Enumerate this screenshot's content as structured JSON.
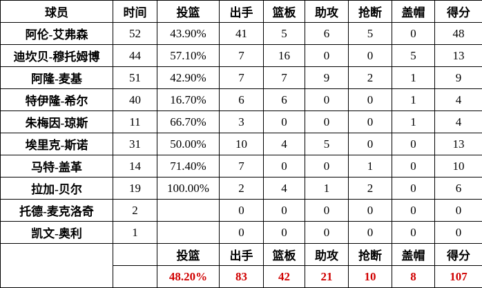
{
  "header": [
    "球员",
    "时间",
    "投篮",
    "出手",
    "篮板",
    "助攻",
    "抢断",
    "盖帽",
    "得分"
  ],
  "rows": [
    [
      "阿伦-艾弗森",
      "52",
      "43.90%",
      "41",
      "5",
      "6",
      "5",
      "0",
      "48"
    ],
    [
      "迪坎贝-穆托姆博",
      "44",
      "57.10%",
      "7",
      "16",
      "0",
      "0",
      "5",
      "13"
    ],
    [
      "阿隆-麦基",
      "51",
      "42.90%",
      "7",
      "7",
      "9",
      "2",
      "1",
      "9"
    ],
    [
      "特伊隆-希尔",
      "40",
      "16.70%",
      "6",
      "6",
      "0",
      "0",
      "1",
      "4"
    ],
    [
      "朱梅因-琼斯",
      "11",
      "66.70%",
      "3",
      "0",
      "0",
      "0",
      "1",
      "4"
    ],
    [
      "埃里克-斯诺",
      "31",
      "50.00%",
      "10",
      "4",
      "5",
      "0",
      "0",
      "13"
    ],
    [
      "马特-盖革",
      "14",
      "71.40%",
      "7",
      "0",
      "0",
      "1",
      "0",
      "10"
    ],
    [
      "拉加-贝尔",
      "19",
      "100.00%",
      "2",
      "4",
      "1",
      "2",
      "0",
      "6"
    ],
    [
      "托德-麦克洛奇",
      "2",
      "",
      "0",
      "0",
      "0",
      "0",
      "0",
      "0"
    ],
    [
      "凯文-奥利",
      "1",
      "",
      "0",
      "0",
      "0",
      "0",
      "0",
      "0"
    ]
  ],
  "summary": {
    "labels": [
      "投篮",
      "出手",
      "篮板",
      "助攻",
      "抢断",
      "盖帽",
      "得分"
    ],
    "totals": [
      "48.20%",
      "83",
      "42",
      "21",
      "10",
      "8",
      "107"
    ]
  },
  "colors": {
    "totals": "#d00000",
    "border": "#000000"
  }
}
